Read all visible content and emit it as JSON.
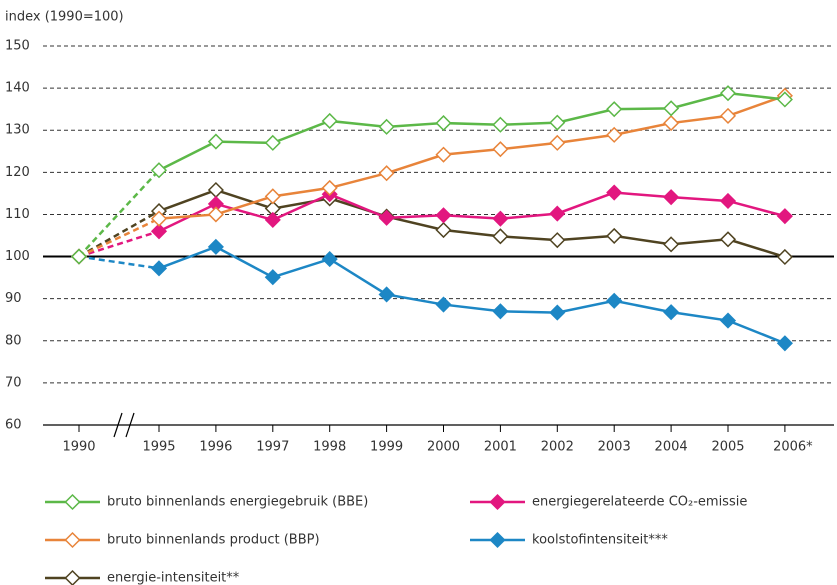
{
  "chart_data": {
    "type": "line",
    "y_label": "index (1990=100)",
    "categories": [
      "1990",
      "1995",
      "1996",
      "1997",
      "1998",
      "1999",
      "2000",
      "2001",
      "2002",
      "2003",
      "2004",
      "2005",
      "2006*"
    ],
    "series": [
      {
        "name": "bruto binnenlands energiegebruik (BBE)",
        "color": "#5cb848",
        "marker": "open",
        "values": [
          100,
          120.5,
          127.3,
          127,
          132.2,
          130.8,
          131.7,
          131.3,
          131.8,
          135,
          135.2,
          138.8,
          137.3
        ]
      },
      {
        "name": "energiegerelateerde CO₂-emissie",
        "color": "#e2177f",
        "marker": "filled",
        "values": [
          100,
          106,
          112.5,
          108.7,
          114.8,
          109.2,
          109.8,
          109,
          110.2,
          115.2,
          114.1,
          113.2,
          109.6
        ]
      },
      {
        "name": "bruto binnenlands product (BBP)",
        "color": "#e8843a",
        "marker": "open",
        "values": [
          100,
          109,
          110,
          114.3,
          116.3,
          119.8,
          124.2,
          125.5,
          127,
          128.9,
          131.7,
          133.4,
          138.2
        ]
      },
      {
        "name": "koolstofintensiteit***",
        "color": "#1d87c5",
        "marker": "filled",
        "values": [
          100,
          97.2,
          102.3,
          95.1,
          99.4,
          91,
          88.6,
          87,
          86.7,
          89.5,
          86.8,
          84.8,
          79.4
        ]
      },
      {
        "name": "energie-intensiteit**",
        "color": "#4f4321",
        "marker": "open",
        "values": [
          100,
          110.8,
          115.8,
          111.4,
          113.8,
          109.5,
          106.3,
          104.8,
          103.9,
          104.9,
          102.9,
          104.1,
          99.9
        ]
      }
    ],
    "ylim": [
      60,
      150
    ],
    "yticks": [
      60,
      70,
      80,
      90,
      100,
      110,
      120,
      130,
      140,
      150
    ],
    "baseline": 100,
    "grid": true
  }
}
